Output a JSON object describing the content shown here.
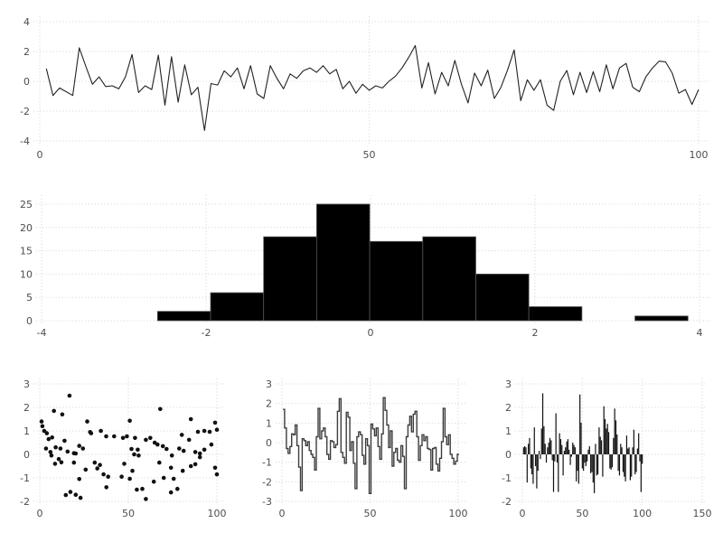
{
  "figure": {
    "background": "#ffffff",
    "grid_color": "#cfd2e3",
    "tick_label_color": "#4d4d4d",
    "series_color": "#222222",
    "bar_fill": "#000000",
    "bar_edge": "#555555",
    "tick_font_size": 11
  },
  "chart_data": [
    {
      "id": "line",
      "type": "line",
      "title": "",
      "xlabel": "",
      "ylabel": "",
      "x_ticks": [
        0,
        50,
        100
      ],
      "y_ticks": [
        -4,
        -2,
        0,
        2,
        4
      ],
      "xlim": [
        -4,
        105
      ],
      "ylim": [
        -4,
        4
      ],
      "x_start": 1,
      "values": [
        0.85,
        -0.95,
        -0.45,
        -0.7,
        -0.95,
        2.25,
        1.0,
        -0.2,
        0.3,
        -0.35,
        -0.3,
        -0.5,
        0.3,
        1.8,
        -0.75,
        -0.3,
        -0.55,
        1.75,
        -1.6,
        1.65,
        -1.4,
        1.1,
        -0.9,
        -0.4,
        -3.3,
        -0.15,
        -0.25,
        0.7,
        0.3,
        0.9,
        -0.5,
        1.05,
        -0.85,
        -1.15,
        1.05,
        0.2,
        -0.5,
        0.5,
        0.2,
        0.7,
        0.9,
        0.6,
        1.05,
        0.5,
        0.8,
        -0.5,
        0.0,
        -0.8,
        -0.2,
        -0.6,
        -0.3,
        -0.45,
        0.0,
        0.35,
        0.9,
        1.6,
        2.4,
        -0.45,
        1.25,
        -0.85,
        0.6,
        -0.3,
        1.4,
        -0.2,
        -1.45,
        0.55,
        -0.3,
        0.75,
        -1.15,
        -0.4,
        0.75,
        2.1,
        -1.3,
        0.1,
        -0.6,
        0.1,
        -1.6,
        -1.95,
        0.0,
        0.72,
        -0.9,
        0.6,
        -0.75,
        0.65,
        -0.7,
        1.1,
        -0.5,
        0.9,
        1.2,
        -0.4,
        -0.7,
        0.3,
        0.9,
        1.35,
        1.3,
        0.55,
        -0.8,
        -0.55,
        -1.55,
        -0.55
      ]
    },
    {
      "id": "hist",
      "type": "bar",
      "title": "",
      "xlabel": "",
      "ylabel": "",
      "x_ticks": [
        -4,
        -2,
        0,
        2,
        4
      ],
      "y_ticks": [
        0,
        5,
        10,
        15,
        20,
        25
      ],
      "xlim": [
        -4,
        4
      ],
      "ylim": [
        0,
        26
      ],
      "bin_start": -2.59,
      "bin_width": 0.645,
      "values": [
        2,
        6,
        18,
        25,
        17,
        18,
        10,
        3,
        0,
        1
      ]
    },
    {
      "id": "scatter",
      "type": "scatter",
      "title": "",
      "xlabel": "",
      "ylabel": "",
      "x_ticks": [
        0,
        50,
        100
      ],
      "y_ticks": [
        -2,
        -1,
        0,
        1,
        2,
        3
      ],
      "xlim": [
        -4,
        105
      ],
      "ylim": [
        -2,
        3
      ],
      "points": [
        [
          1,
          1.4
        ],
        [
          1.5,
          1.2
        ],
        [
          2.5,
          1.0
        ],
        [
          3.5,
          0.25
        ],
        [
          4,
          0.9
        ],
        [
          5,
          0.65
        ],
        [
          6,
          0.1
        ],
        [
          6.6,
          -0.05
        ],
        [
          7,
          0.72
        ],
        [
          8,
          1.85
        ],
        [
          8.6,
          -0.4
        ],
        [
          9,
          0.3
        ],
        [
          10.7,
          -0.2
        ],
        [
          11.7,
          0.25
        ],
        [
          12.2,
          -0.34
        ],
        [
          12.7,
          1.7
        ],
        [
          14,
          0.58
        ],
        [
          14.7,
          -1.73
        ],
        [
          15.7,
          0.12
        ],
        [
          16.8,
          2.5
        ],
        [
          17.3,
          -1.6
        ],
        [
          19.3,
          0.05
        ],
        [
          19.3,
          -0.35
        ],
        [
          20.3,
          0.04
        ],
        [
          20.3,
          -1.72
        ],
        [
          22.3,
          0.36
        ],
        [
          22.3,
          -1.05
        ],
        [
          23,
          -1.85
        ],
        [
          24.4,
          0.25
        ],
        [
          25.9,
          -0.65
        ],
        [
          26.8,
          1.4
        ],
        [
          28.4,
          0.95
        ],
        [
          29,
          0.9
        ],
        [
          31,
          -0.35
        ],
        [
          32.5,
          -0.6
        ],
        [
          34,
          -0.45
        ],
        [
          34.5,
          1.0
        ],
        [
          36,
          -0.85
        ],
        [
          37.5,
          0.77
        ],
        [
          37.6,
          -1.4
        ],
        [
          38.6,
          -0.95
        ],
        [
          42,
          0.77
        ],
        [
          46.2,
          -0.95
        ],
        [
          47,
          0.7
        ],
        [
          47.7,
          -0.4
        ],
        [
          49.2,
          0.77
        ],
        [
          50.8,
          1.43
        ],
        [
          50.8,
          -1.04
        ],
        [
          51.8,
          0.23
        ],
        [
          52.3,
          -0.7
        ],
        [
          53.3,
          0
        ],
        [
          53.8,
          0.7
        ],
        [
          54.8,
          -1.5
        ],
        [
          55.3,
          0.2
        ],
        [
          55.8,
          -0.05
        ],
        [
          57.9,
          -1.47
        ],
        [
          59.9,
          0.62
        ],
        [
          59.9,
          -1.9
        ],
        [
          62.4,
          0.7
        ],
        [
          64.4,
          -1.16
        ],
        [
          64.9,
          0.5
        ],
        [
          66.5,
          0.42
        ],
        [
          67.5,
          -0.35
        ],
        [
          68,
          1.93
        ],
        [
          69.5,
          0.35
        ],
        [
          70,
          -1.0
        ],
        [
          71.6,
          0.23
        ],
        [
          74.1,
          -0.57
        ],
        [
          74.1,
          -1.62
        ],
        [
          74.6,
          -0.05
        ],
        [
          75.6,
          -1.04
        ],
        [
          77.7,
          -1.47
        ],
        [
          78.7,
          0.25
        ],
        [
          80.2,
          0.83
        ],
        [
          80.7,
          -0.7
        ],
        [
          81.2,
          0.15
        ],
        [
          84.3,
          0.62
        ],
        [
          85.3,
          1.5
        ],
        [
          85.3,
          -0.5
        ],
        [
          87.8,
          0.1
        ],
        [
          87.8,
          -0.42
        ],
        [
          89.3,
          0.96
        ],
        [
          90.4,
          0.04
        ],
        [
          90.4,
          -0.12
        ],
        [
          92.9,
          1.0
        ],
        [
          92.9,
          0.2
        ],
        [
          95.9,
          0.96
        ],
        [
          96.9,
          0.42
        ],
        [
          99,
          1.35
        ],
        [
          99,
          -0.57
        ],
        [
          100,
          1.05
        ],
        [
          100,
          -0.85
        ]
      ]
    },
    {
      "id": "step",
      "type": "line",
      "subtype": "step",
      "title": "",
      "xlabel": "",
      "ylabel": "",
      "x_ticks": [
        0,
        50,
        100
      ],
      "y_ticks": [
        -3,
        -2,
        -1,
        0,
        1,
        2,
        3
      ],
      "xlim": [
        -4,
        105
      ],
      "ylim": [
        -3,
        3
      ],
      "x_start": 1,
      "values": [
        1.7,
        0.75,
        -0.3,
        -0.55,
        -0.2,
        0.45,
        0.4,
        0.9,
        -0.15,
        -1.25,
        -2.45,
        0.2,
        0.1,
        -0.15,
        0.05,
        -0.4,
        -0.6,
        -0.75,
        -1.4,
        0.3,
        1.75,
        0.2,
        0.6,
        0.75,
        0.3,
        -0.6,
        -0.85,
        0.1,
        0.05,
        -0.25,
        -0.1,
        1.6,
        2.25,
        -0.5,
        -0.75,
        -1.05,
        1.55,
        1.3,
        -0.4,
        0.05,
        -1.05,
        -2.35,
        0.3,
        0.55,
        0.4,
        -0.65,
        -1.1,
        0.2,
        -0.15,
        -2.6,
        0.95,
        0.7,
        0.35,
        0.75,
        -0.2,
        -0.85,
        0.45,
        2.3,
        1.65,
        0.9,
        -0.25,
        0.6,
        -1.2,
        -0.5,
        -0.3,
        -0.9,
        -1.0,
        -0.15,
        -0.7,
        -2.35,
        0.3,
        0.9,
        1.35,
        0.55,
        1.45,
        1.6,
        0.3,
        -0.9,
        -0.15,
        0.4,
        0.1,
        0.3,
        -0.3,
        -0.35,
        -1.4,
        -0.3,
        -0.25,
        -1.1,
        -1.45,
        -0.8,
        0.05,
        1.75,
        0.3,
        -0.1,
        0.4,
        -0.6,
        -0.8,
        -1.1,
        -0.95,
        -0.6
      ]
    },
    {
      "id": "stem",
      "type": "bar",
      "subtype": "thin-vertical-bars",
      "title": "",
      "xlabel": "",
      "ylabel": "",
      "x_ticks": [
        0,
        50,
        100,
        150
      ],
      "y_ticks": [
        -2,
        -1,
        0,
        1,
        2,
        3
      ],
      "xlim": [
        -6,
        156
      ],
      "ylim": [
        -2,
        3
      ],
      "x_start": 1,
      "values": [
        0.3,
        0.35,
        0.3,
        -1.2,
        0.45,
        0.7,
        -0.6,
        -0.85,
        -1.25,
        1.15,
        -0.5,
        -1.45,
        -0.7,
        0.15,
        -0.2,
        1.1,
        2.6,
        1.2,
        0.45,
        -0.35,
        0.3,
        0.5,
        0.7,
        0.6,
        -0.25,
        -1.6,
        -0.3,
        1.75,
        -0.35,
        -1.6,
        0.9,
        0.65,
        0.4,
        -0.9,
        0.15,
        0.3,
        0.55,
        0.65,
        0.2,
        -0.45,
        -0.1,
        0.5,
        0.4,
        0.3,
        -1.15,
        -0.7,
        -1.25,
        2.55,
        1.35,
        -0.6,
        -0.7,
        -0.35,
        -0.5,
        -0.3,
        0.2,
        0.35,
        -0.8,
        -0.75,
        -1.2,
        -1.65,
        0.45,
        -0.9,
        -0.85,
        1.15,
        0.75,
        0.6,
        -0.95,
        2.05,
        1.5,
        1.1,
        1.3,
        0.95,
        -0.6,
        -0.65,
        -0.55,
        0.7,
        1.95,
        1.45,
        0.85,
        -0.7,
        -0.9,
        0.45,
        0.3,
        -0.75,
        -0.95,
        -1.15,
        0.8,
        0.25,
        0.3,
        -1.1,
        -0.95,
        0.3,
        1.05,
        -0.85,
        -0.75,
        0.25,
        0.9,
        -0.3,
        -1.6,
        -0.4
      ]
    }
  ]
}
